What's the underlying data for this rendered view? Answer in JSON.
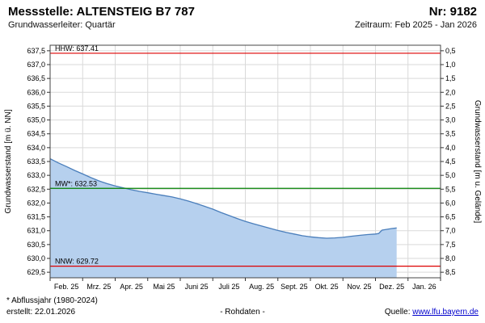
{
  "header": {
    "title": "Messstelle: ALTENSTEIG B7 787",
    "number": "Nr: 9182",
    "aquifer": "Grundwasserleiter: Quartär",
    "period": "Zeitraum: Feb 2025 - Jan 2026"
  },
  "footer": {
    "note": "* Abflussjahr (1980-2024)",
    "created": "erstellt:  22.01.2026",
    "center": "- Rohdaten -",
    "source_label": "Quelle:",
    "source_link": "www.lfu.bayern.de"
  },
  "chart_data": {
    "type": "area",
    "title": "",
    "xlabel": "",
    "ylabel_left": "Grundwasserstand [m ü. NN]",
    "ylabel_right": "Grundwasserstand [m u. Gelände]",
    "x_labels": [
      "Feb. 25",
      "Mrz. 25",
      "Apr. 25",
      "Mai 25",
      "Juni 25",
      "Juli 25",
      "Aug. 25",
      "Sept. 25",
      "Okt. 25",
      "Nov. 25",
      "Dez. 25",
      "Jan. 26"
    ],
    "x_months_total": 12,
    "ylim_left": [
      629.3,
      637.7
    ],
    "yticks_left_range": [
      629.5,
      637.5
    ],
    "ytick_step": 0.5,
    "right_axis_offset": 638.0,
    "yticks_right_range": [
      0.5,
      8.5
    ],
    "grid": true,
    "reference_lines": [
      {
        "name": "HHW",
        "label": "HHW: 637.41",
        "value": 637.41,
        "color": "#dd0000"
      },
      {
        "name": "MW",
        "label": "MW*: 632.53",
        "value": 632.53,
        "color": "#008000"
      },
      {
        "name": "NNW",
        "label": "NNW: 629.72",
        "value": 629.72,
        "color": "#dd0000"
      }
    ],
    "series": [
      {
        "name": "Grundwasserstand Rohdaten",
        "points": [
          [
            0.0,
            633.6
          ],
          [
            0.25,
            633.45
          ],
          [
            0.5,
            633.32
          ],
          [
            0.75,
            633.18
          ],
          [
            1.0,
            633.05
          ],
          [
            1.25,
            632.92
          ],
          [
            1.5,
            632.8
          ],
          [
            1.75,
            632.7
          ],
          [
            2.0,
            632.62
          ],
          [
            2.25,
            632.55
          ],
          [
            2.5,
            632.48
          ],
          [
            2.75,
            632.42
          ],
          [
            3.0,
            632.37
          ],
          [
            3.25,
            632.32
          ],
          [
            3.5,
            632.27
          ],
          [
            3.75,
            632.22
          ],
          [
            4.0,
            632.15
          ],
          [
            4.25,
            632.07
          ],
          [
            4.5,
            631.98
          ],
          [
            4.75,
            631.88
          ],
          [
            5.0,
            631.78
          ],
          [
            5.25,
            631.66
          ],
          [
            5.5,
            631.55
          ],
          [
            5.75,
            631.44
          ],
          [
            6.0,
            631.34
          ],
          [
            6.25,
            631.25
          ],
          [
            6.5,
            631.17
          ],
          [
            6.75,
            631.09
          ],
          [
            7.0,
            631.01
          ],
          [
            7.25,
            630.94
          ],
          [
            7.5,
            630.88
          ],
          [
            7.75,
            630.82
          ],
          [
            8.0,
            630.78
          ],
          [
            8.25,
            630.75
          ],
          [
            8.5,
            630.73
          ],
          [
            8.75,
            630.74
          ],
          [
            9.0,
            630.76
          ],
          [
            9.25,
            630.8
          ],
          [
            9.5,
            630.83
          ],
          [
            9.75,
            630.86
          ],
          [
            10.0,
            630.88
          ],
          [
            10.1,
            630.9
          ],
          [
            10.2,
            631.02
          ],
          [
            10.35,
            631.05
          ],
          [
            10.5,
            631.08
          ],
          [
            10.65,
            631.1
          ]
        ]
      }
    ],
    "colors": {
      "area_fill": "#b6d0ee",
      "line": "#4a7ebb",
      "grid": "#d9d9d9",
      "border": "#444444"
    }
  }
}
